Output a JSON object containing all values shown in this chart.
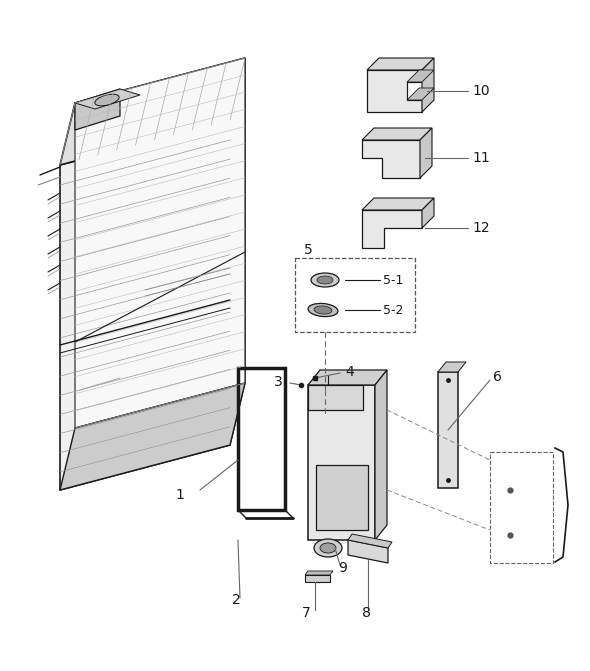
{
  "bg_color": "#ffffff",
  "line_color": "#1a1a1a",
  "label_color": "#111111",
  "leader_color": "#666666",
  "fig_w": 5.9,
  "fig_h": 6.71,
  "dpi": 100
}
